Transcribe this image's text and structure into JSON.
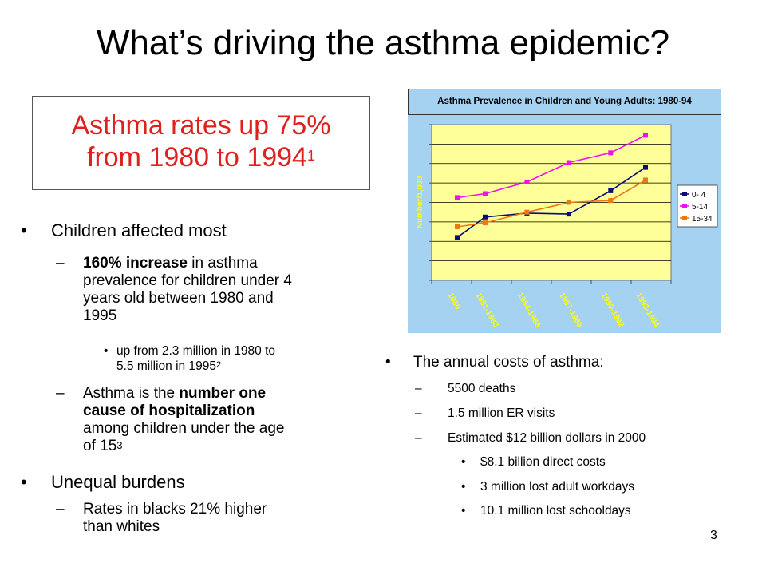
{
  "slide": {
    "title": "What’s driving the asthma epidemic?",
    "page_number": "3"
  },
  "callout": {
    "line1": "Asthma rates up 75%",
    "line2": "from 1980 to 1994",
    "sup": "1",
    "color": "#e0201f"
  },
  "left_bullets": {
    "children_affected": "Children affected most",
    "increase_bold": "160% increase",
    "increase_rest_1": " in asthma",
    "increase_line2": "prevalence for children under 4",
    "increase_line3": "years old between 1980 and",
    "increase_line4": "1995",
    "upfrom_line1": "up from 2.3 million in 1980 to",
    "upfrom_line2": "5.5 million in 1995",
    "upfrom_sup": "2",
    "number_one_pre": "Asthma is the ",
    "number_one_bold1": "number one",
    "number_one_bold2": "cause of hospitalization",
    "number_one_line3": "among children under the age",
    "number_one_line4": "of 15",
    "number_one_sup": "3",
    "unequal": "Unequal burdens",
    "rates_line1": "Rates in blacks 21% higher",
    "rates_line2": "than whites"
  },
  "right_bullets": {
    "annual": "The annual costs of asthma:",
    "deaths": "5500 deaths",
    "er": "1.5 million ER visits",
    "estimated": "Estimated $12 billion dollars in 2000",
    "direct": "$8.1 billion direct costs",
    "workdays": "3 million lost adult workdays",
    "schooldays": "10.1 million lost schooldays"
  },
  "markers": {
    "bullet": "•",
    "dash": "–"
  },
  "chart_data": {
    "type": "line",
    "title": "Asthma Prevalence in Children and Young Adults:  1980-94",
    "ylabel": "Number/1,000",
    "xlabel": "",
    "categories": [
      "1980",
      "1981-1983",
      "1984-1986",
      "1987-1989",
      "1990-1992",
      "1993-1994"
    ],
    "x": [
      1980,
      1982,
      1985,
      1988,
      1991,
      1993.5
    ],
    "ylim": [
      0,
      80
    ],
    "grid": true,
    "legend_position": "right",
    "background": "#a6d2f2",
    "plot_background": "#ffff99",
    "series": [
      {
        "name": "0- 4",
        "color": "#0a0a78",
        "marker": "square",
        "values": [
          22,
          32.5,
          34.5,
          34,
          46,
          58
        ]
      },
      {
        "name": "5-14",
        "color": "#ee10ee",
        "marker": "square",
        "values": [
          42.5,
          44.5,
          50.5,
          60.5,
          65.5,
          74.5
        ]
      },
      {
        "name": "15-34",
        "color": "#ee7711",
        "marker": "square",
        "values": [
          27.5,
          29.5,
          35,
          40,
          41,
          51.5
        ]
      }
    ]
  }
}
